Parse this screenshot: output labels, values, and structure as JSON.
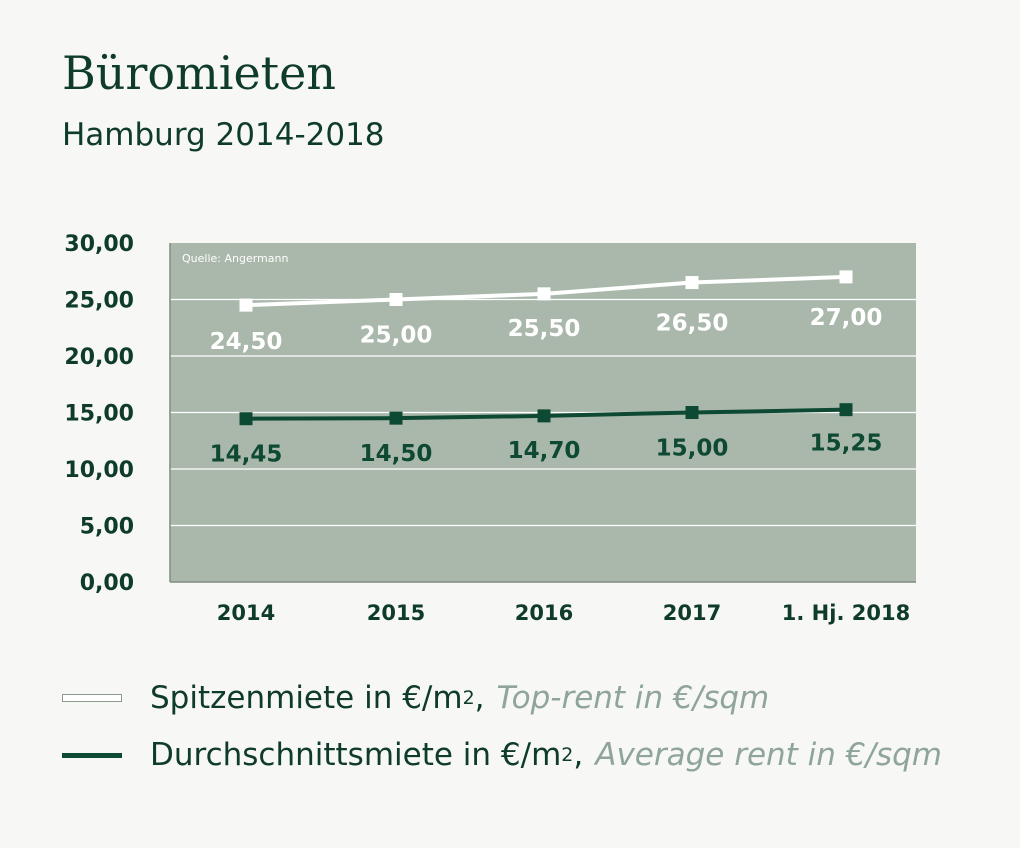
{
  "header": {
    "title": "Büromieten",
    "subtitle": "Hamburg 2014-2018"
  },
  "legend": [
    {
      "label_de_prefix": "Spitzenmiete in €/m",
      "sup": "2",
      "comma": ",",
      "label_en": "Top-rent in €/sqm"
    },
    {
      "label_de_prefix": "Durchschnittsmiete in €/m",
      "sup": "2",
      "comma": ",",
      "label_en": "Average rent in €/sqm"
    }
  ],
  "colors": {
    "plot_bg": "#aab8ab",
    "top_rent": "#ffffff",
    "avg_rent": "#0e4a33",
    "text": "#0e3b2a"
  },
  "chart_data": {
    "type": "line",
    "source_note": "Quelle: Angermann",
    "categories": [
      "2014",
      "2015",
      "2016",
      "2017",
      "1. Hj. 2018"
    ],
    "y_ticks": [
      "0,00",
      "5,00",
      "10,00",
      "15,00",
      "20,00",
      "25,00",
      "30,00"
    ],
    "ylim": [
      0,
      30
    ],
    "grid": true,
    "series": [
      {
        "name": "Spitzenmiete in €/m², Top-rent in €/sqm",
        "values": [
          24.5,
          25.0,
          25.5,
          26.5,
          27.0
        ],
        "labels": [
          "24,50",
          "25,00",
          "25,50",
          "26,50",
          "27,00"
        ],
        "color": "#ffffff"
      },
      {
        "name": "Durchschnittsmiete in €/m², Average rent in €/sqm",
        "values": [
          14.45,
          14.5,
          14.7,
          15.0,
          15.25
        ],
        "labels": [
          "14,45",
          "14,50",
          "14,70",
          "15,00",
          "15,25"
        ],
        "color": "#0e4a33"
      }
    ]
  }
}
